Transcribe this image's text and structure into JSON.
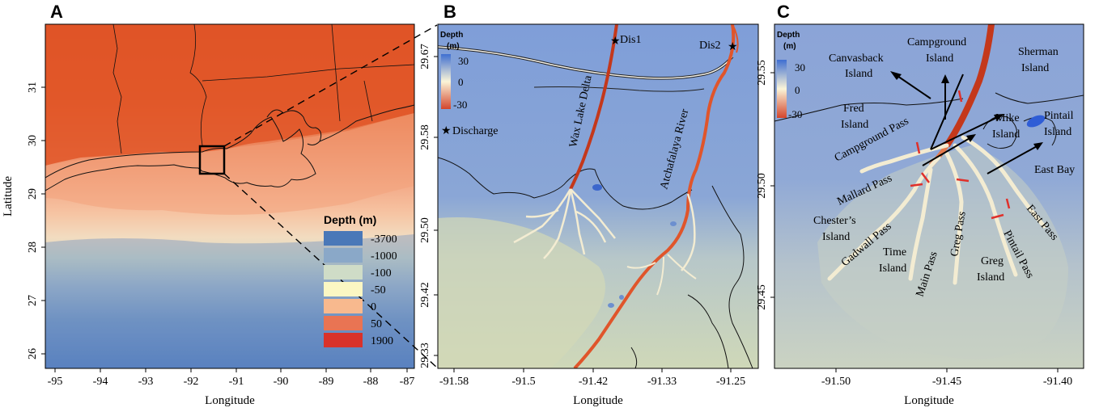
{
  "figure": {
    "panels": [
      {
        "letter": "A",
        "xlabel": "Longitude",
        "ylabel": "Latitude",
        "x_ticks": [
          "-95",
          "-94",
          "-93",
          "-92",
          "-91",
          "-90",
          "-89",
          "-88",
          "-87"
        ],
        "y_ticks": [
          "26",
          "27",
          "28",
          "29",
          "30",
          "31"
        ],
        "legend_title": "Depth (m)",
        "legend": [
          {
            "label": "-3700",
            "color": "#4a78b8"
          },
          {
            "label": "-1000",
            "color": "#8aa8c8"
          },
          {
            "label": "-100",
            "color": "#cfdcc7"
          },
          {
            "label": "-50",
            "color": "#fbf7c3"
          },
          {
            "label": "0",
            "color": "#f8b98e"
          },
          {
            "label": "50",
            "color": "#e97453"
          },
          {
            "label": "1900",
            "color": "#d9322a"
          }
        ]
      },
      {
        "letter": "B",
        "xlabel": "Longitude",
        "x_ticks": [
          "-91.58",
          "-91.5",
          "-91.42",
          "-91.33",
          "-91.25"
        ],
        "y_ticks": [
          "29.33",
          "29.42",
          "29.50",
          "29.58",
          "29.67"
        ],
        "legend_title": "Depth",
        "legend_unit": "(m)",
        "colorbar_ticks": [
          "30",
          "0",
          "-30"
        ],
        "discharge_label": "Discharge",
        "labels": [
          "Dis1",
          "Dis2",
          "Wax Lake Delta",
          "Atchafalaya River"
        ]
      },
      {
        "letter": "C",
        "xlabel": "Longitude",
        "x_ticks": [
          "-91.50",
          "-91.45",
          "-91.40"
        ],
        "y_ticks": [
          "29.45",
          "29.50",
          "29.55"
        ],
        "legend_title": "Depth",
        "legend_unit": "(m)",
        "colorbar_ticks": [
          "30",
          "0",
          "-30"
        ],
        "labels": {
          "canvasback_1": "Canvasback",
          "canvasback_2": "Island",
          "campground_1": "Campground",
          "campground_2": "Island",
          "sherman_1": "Sherman",
          "sherman_2": "Island",
          "fred_1": "Fred",
          "fred_2": "Island",
          "mike_1": "Mike",
          "mike_2": "Island",
          "pintail_1": "Pintail",
          "pintail_2": "Island",
          "campground_pass": "Campground Pass",
          "east_bay": "East Bay",
          "mallard_pass": "Mallard Pass",
          "chesters_1": "Chester’s",
          "chesters_2": "Island",
          "gadwall_pass": "Gadwall Pass",
          "time_1": "Time",
          "time_2": "Island",
          "main_pass": "Main Pass",
          "greg_pass": "Greg Pass",
          "greg_1": "Greg",
          "greg_2": "Island",
          "pintail_pass": "Pintail Pass",
          "east_pass": "East Pass"
        }
      }
    ]
  }
}
